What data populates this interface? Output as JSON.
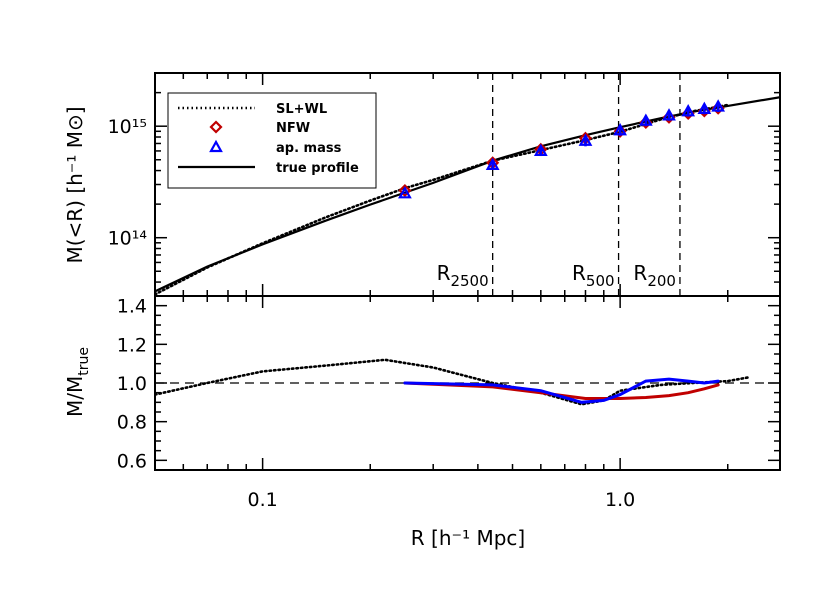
{
  "chart_data": [
    {
      "type": "line",
      "panel": "top",
      "x_scale": "log",
      "y_scale": "log",
      "xlim": [
        0.05,
        2.8
      ],
      "ylim": [
        30000000000000.0,
        3000000000000000.0
      ],
      "ylabel": "M(<R) [h⁻¹ M⊙]",
      "ytick_labels": [
        "10¹⁴",
        "10¹⁵"
      ],
      "legend": {
        "placement": "top-left",
        "entries": [
          "SL+WL",
          "NFW",
          "ap. mass",
          "true profile"
        ]
      },
      "vlines": [
        {
          "name": "R2500",
          "x": 0.44,
          "label_main": "R",
          "label_sub": "2500"
        },
        {
          "name": "R500",
          "x": 0.99,
          "label_main": "R",
          "label_sub": "500"
        },
        {
          "name": "R200",
          "x": 1.47,
          "label_main": "R",
          "label_sub": "200"
        }
      ],
      "series": [
        {
          "name": "true profile",
          "style": "solid",
          "color": "#000000",
          "x": [
            0.05,
            0.07,
            0.1,
            0.15,
            0.2,
            0.3,
            0.44,
            0.6,
            0.8,
            1.0,
            1.3,
            1.6,
            2.0,
            2.8
          ],
          "y": [
            33000000000000.0,
            55000000000000.0,
            87000000000000.0,
            142000000000000.0,
            198000000000000.0,
            310000000000000.0,
            490000000000000.0,
            660000000000000.0,
            830000000000000.0,
            980000000000000.0,
            1180000000000000.0,
            1350000000000000.0,
            1520000000000000.0,
            1820000000000000.0
          ]
        },
        {
          "name": "SL+WL",
          "style": "dotted",
          "color": "#000000",
          "x": [
            0.05,
            0.07,
            0.1,
            0.15,
            0.2,
            0.25,
            0.3,
            0.44,
            0.6,
            0.8,
            1.0,
            1.3,
            1.6,
            2.0
          ],
          "y": [
            31000000000000.0,
            54000000000000.0,
            89000000000000.0,
            152000000000000.0,
            215000000000000.0,
            278000000000000.0,
            330000000000000.0,
            490000000000000.0,
            610000000000000.0,
            750000000000000.0,
            890000000000000.0,
            1150000000000000.0,
            1360000000000000.0,
            1550000000000000.0
          ]
        },
        {
          "name": "NFW",
          "style": "diamond",
          "color": "#c00000",
          "x": [
            0.25,
            0.44,
            0.6,
            0.8,
            1.0,
            1.18,
            1.37,
            1.55,
            1.72,
            1.88
          ],
          "y": [
            265000000000000.0,
            470000000000000.0,
            620000000000000.0,
            780000000000000.0,
            900000000000000.0,
            1080000000000000.0,
            1200000000000000.0,
            1300000000000000.0,
            1370000000000000.0,
            1450000000000000.0
          ],
          "err": [
            2000000000000.0,
            30000000000000.0,
            50000000000000.0,
            60000000000000.0,
            80000000000000.0,
            90000000000000.0,
            100000000000000.0,
            110000000000000.0,
            120000000000000.0,
            130000000000000.0
          ]
        },
        {
          "name": "ap. mass",
          "style": "triangle",
          "color": "#0000ff",
          "x": [
            0.25,
            0.44,
            0.6,
            0.8,
            1.0,
            1.18,
            1.37,
            1.55,
            1.72,
            1.88
          ],
          "y": [
            250000000000000.0,
            450000000000000.0,
            600000000000000.0,
            740000000000000.0,
            920000000000000.0,
            1120000000000000.0,
            1250000000000000.0,
            1360000000000000.0,
            1430000000000000.0,
            1500000000000000.0
          ],
          "err": [
            3000000000000.0,
            40000000000000.0,
            60000000000000.0,
            80000000000000.0,
            100000000000000.0,
            120000000000000.0,
            130000000000000.0,
            140000000000000.0,
            150000000000000.0,
            160000000000000.0
          ]
        }
      ]
    },
    {
      "type": "line",
      "panel": "bottom",
      "x_scale": "log",
      "xlim": [
        0.05,
        2.8
      ],
      "ylim": [
        0.55,
        1.45
      ],
      "xlabel": "R [h⁻¹ Mpc]",
      "ylabel_main": "M/M",
      "ylabel_sub": "true",
      "xtick_labels": [
        "0.1",
        "1.0"
      ],
      "ytick_labels": [
        "0.6",
        "0.8",
        "1.0",
        "1.2",
        "1.4"
      ],
      "hline": 1.0,
      "series": [
        {
          "name": "SL+WL",
          "style": "dotted",
          "color": "#000000",
          "x": [
            0.05,
            0.07,
            0.1,
            0.15,
            0.22,
            0.3,
            0.44,
            0.6,
            0.78,
            0.9,
            1.0,
            1.3,
            1.6,
            2.0,
            2.3
          ],
          "y": [
            0.94,
            1.0,
            1.06,
            1.09,
            1.12,
            1.08,
            1.0,
            0.95,
            0.89,
            0.91,
            0.96,
            0.99,
            1.0,
            1.01,
            1.03
          ]
        },
        {
          "name": "NFW",
          "style": "solid",
          "color": "#c00000",
          "x": [
            0.25,
            0.44,
            0.6,
            0.8,
            1.0,
            1.18,
            1.37,
            1.55,
            1.72,
            1.88
          ],
          "y": [
            1.0,
            0.98,
            0.95,
            0.92,
            0.92,
            0.925,
            0.935,
            0.95,
            0.97,
            0.99
          ]
        },
        {
          "name": "ap. mass",
          "style": "solid",
          "color": "#0000ff",
          "x": [
            0.25,
            0.44,
            0.6,
            0.78,
            0.9,
            1.0,
            1.18,
            1.37,
            1.55,
            1.72,
            1.88
          ],
          "y": [
            1.0,
            0.99,
            0.96,
            0.9,
            0.91,
            0.94,
            1.01,
            1.02,
            1.01,
            1.0,
            1.01
          ]
        }
      ]
    }
  ]
}
